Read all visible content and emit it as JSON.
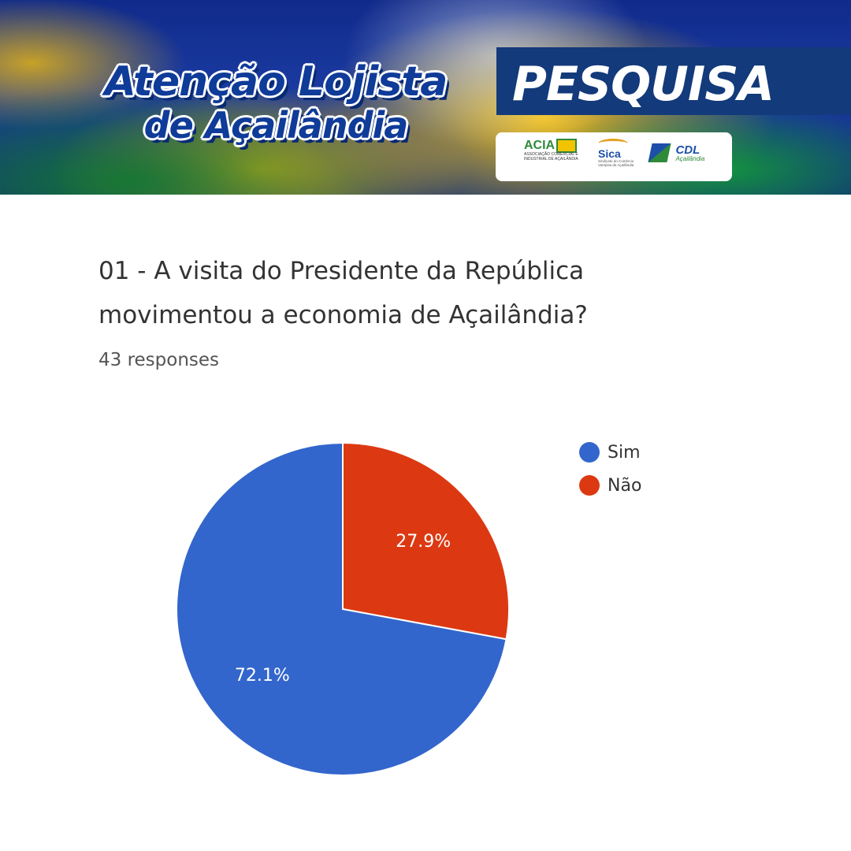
{
  "banner": {
    "title_line1": "Atenção Lojista",
    "title_line2": "de Açailândia",
    "tag": "PESQUISA",
    "logos": {
      "acia": {
        "name": "ACIA",
        "subtitle": "ASSOCIAÇÃO COMERCIAL E INDUSTRIAL DE AÇAILÂNDIA"
      },
      "sica": {
        "name": "Sica",
        "subtitle": "Sindicato do Comércio Varejista de Açailândia"
      },
      "cdl": {
        "name": "CDL",
        "subtitle": "Açailândia"
      }
    }
  },
  "question": "01 - A visita do Presidente da República movimentou a economia de Açailândia?",
  "responses_text": "43 responses",
  "chart_data": {
    "type": "pie",
    "title": "",
    "start_angle_deg": 0,
    "direction": "clockwise",
    "legend_position": "right",
    "slices": [
      {
        "label": "Não",
        "value": 27.9,
        "label_text": "27.9%",
        "color": "#dc3912"
      },
      {
        "label": "Sim",
        "value": 72.1,
        "label_text": "72.1%",
        "color": "#3366cc"
      }
    ]
  },
  "legend": [
    {
      "label": "Sim",
      "color": "#3366cc"
    },
    {
      "label": "Não",
      "color": "#dc3912"
    }
  ],
  "colors": {
    "question_text": "#333333",
    "banner_tag_bg": "#133a7a"
  }
}
